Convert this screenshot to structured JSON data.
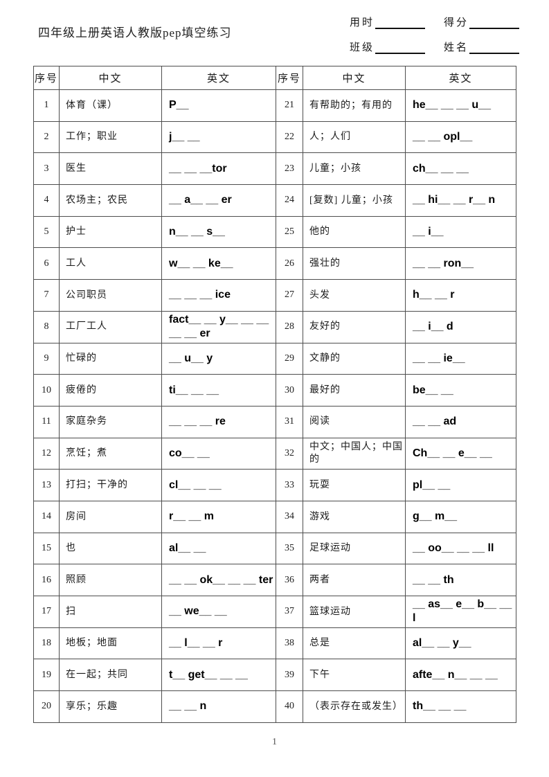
{
  "page": {
    "title": "四年级上册英语人教版pep填空练习",
    "page_number": "1"
  },
  "header_fields": {
    "row1": [
      {
        "label": "用时"
      },
      {
        "label": "得分"
      }
    ],
    "row2": [
      {
        "label": "班级"
      },
      {
        "label": "姓名"
      }
    ]
  },
  "table": {
    "columns": [
      "序号",
      "中文",
      "英文",
      "序号",
      "中文",
      "英文"
    ],
    "rows": [
      [
        "1",
        "体育（课）",
        "P__",
        "21",
        "有帮助的；有用的",
        "he__ __ __ u__"
      ],
      [
        "2",
        "工作；职业",
        "j__ __",
        "22",
        "人；人们",
        "__ __ opl__"
      ],
      [
        "3",
        "医生",
        "__ __ __tor",
        "23",
        "儿童；小孩",
        "ch__ __ __"
      ],
      [
        "4",
        "农场主；农民",
        "__ a__ __ er",
        "24",
        "[复数] 儿童；小孩",
        "__ hi__ __ r__ n"
      ],
      [
        "5",
        "护士",
        "n__ __ s__",
        "25",
        "他的",
        "__ i__"
      ],
      [
        "6",
        "工人",
        "w__ __ ke__",
        "26",
        "强壮的",
        "__ __ ron__"
      ],
      [
        "7",
        "公司职员",
        "__ __ __ ice",
        "27",
        "头发",
        "h__ __ r"
      ],
      [
        "8",
        "工厂工人",
        "fact__ __ y__ __ __ __ __ er",
        "28",
        "友好的",
        "__ i__ d"
      ],
      [
        "9",
        "忙碌的",
        "__ u__ y",
        "29",
        "文静的",
        "__ __ ie__"
      ],
      [
        "10",
        "疲倦的",
        "ti__ __ __",
        "30",
        "最好的",
        "be__ __"
      ],
      [
        "11",
        "家庭杂务",
        "__ __ __ re",
        "31",
        "阅读",
        "__ __ ad"
      ],
      [
        "12",
        "烹饪；煮",
        "co__ __",
        "32",
        "中文；中国人；中国的",
        "Ch__ __ e__ __"
      ],
      [
        "13",
        "打扫；干净的",
        "cl__ __ __",
        "33",
        "玩耍",
        "pl__ __"
      ],
      [
        "14",
        "房间",
        "r__ __ m",
        "34",
        "游戏",
        "g__ m__"
      ],
      [
        "15",
        "也",
        "al__ __",
        "35",
        "足球运动",
        "__ oo__ __ __ ll"
      ],
      [
        "16",
        "照顾",
        "__ __ ok__ __ __ ter",
        "36",
        "两者",
        "__ __ th"
      ],
      [
        "17",
        "扫",
        "__ we__ __",
        "37",
        "篮球运动",
        "__ as__ e__ b__ __ l"
      ],
      [
        "18",
        "地板；地面",
        "__ l__ __ r",
        "38",
        "总是",
        "al__ __ y__"
      ],
      [
        "19",
        "在一起；共同",
        "t__ get__ __ __",
        "39",
        "下午",
        "afte__ n__ __ __"
      ],
      [
        "20",
        "享乐；乐趣",
        "__ __ n",
        "40",
        "（表示存在或发生）",
        "th__ __ __"
      ]
    ]
  }
}
